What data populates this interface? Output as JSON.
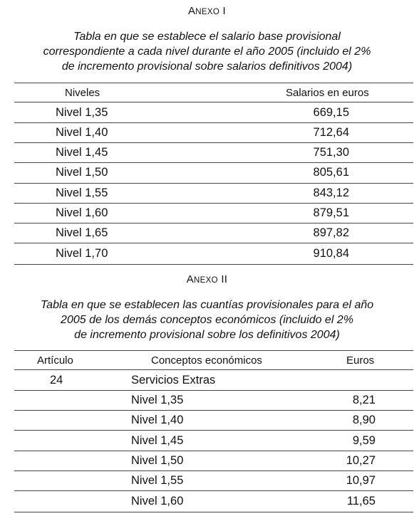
{
  "annex1": {
    "heading_first": "A",
    "heading_rest": "NEXO",
    "heading_numeral": "I",
    "caption_lines": [
      "Tabla en que se establece el salario base provisional",
      "correspondiente a cada nivel durante el año 2005 (incluido el 2%",
      "de incremento provisional sobre salarios definitivos 2004)"
    ],
    "col_headers": [
      "Niveles",
      "Salarios en euros"
    ],
    "rows": [
      {
        "level": "Nivel 1,35",
        "salary": "669,15"
      },
      {
        "level": "Nivel 1,40",
        "salary": "712,64"
      },
      {
        "level": "Nivel 1,45",
        "salary": "751,30"
      },
      {
        "level": "Nivel 1,50",
        "salary": "805,61"
      },
      {
        "level": "Nivel 1,55",
        "salary": "843,12"
      },
      {
        "level": "Nivel 1,60",
        "salary": "879,51"
      },
      {
        "level": "Nivel 1,65",
        "salary": "897,82"
      },
      {
        "level": "Nivel 1,70",
        "salary": "910,84"
      }
    ]
  },
  "annex2": {
    "heading_first": "A",
    "heading_rest": "NEXO",
    "heading_numeral": "II",
    "caption_lines": [
      "Tabla en que se establecen las cuantías provisionales para el año",
      "2005 de los demás conceptos económicos (incluido el 2%",
      "de incremento provisional sobre los definitivos 2004)"
    ],
    "col_headers": [
      "Artículo",
      "Conceptos económicos",
      "Euros"
    ],
    "article": "24",
    "concept_title": "Servicios Extras",
    "rows": [
      {
        "level": "Nivel 1,35",
        "euros": "8,21"
      },
      {
        "level": "Nivel 1,40",
        "euros": "8,90"
      },
      {
        "level": "Nivel 1,45",
        "euros": "9,59"
      },
      {
        "level": "Nivel 1,50",
        "euros": "10,27"
      },
      {
        "level": "Nivel 1,55",
        "euros": "10,97"
      },
      {
        "level": "Nivel 1,60",
        "euros": "11,65"
      }
    ]
  }
}
